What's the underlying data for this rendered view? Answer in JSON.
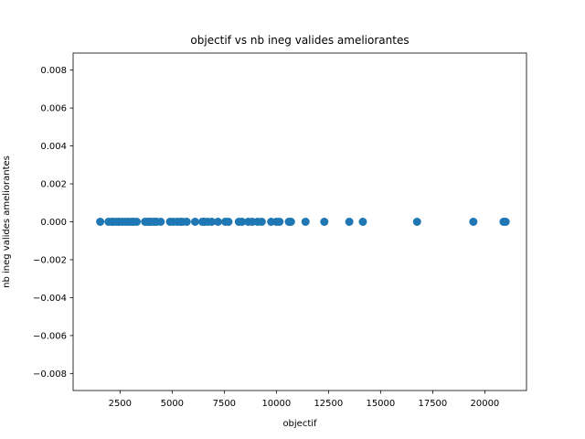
{
  "chart_data": {
    "type": "scatter",
    "title": "objectif   vs   nb ineg valides ameliorantes",
    "xlabel": "objectif",
    "ylabel": "nb ineg valides ameliorantes",
    "xlim": [
      250,
      22000
    ],
    "ylim": [
      -0.0089,
      0.0089
    ],
    "xticks": [
      2500,
      5000,
      7500,
      10000,
      12500,
      15000,
      17500,
      20000
    ],
    "xtick_labels": [
      "2500",
      "5000",
      "7500",
      "10000",
      "12500",
      "15000",
      "17500",
      "20000"
    ],
    "yticks": [
      -0.008,
      -0.006,
      -0.004,
      -0.002,
      0.0,
      0.002,
      0.004,
      0.006,
      0.008
    ],
    "ytick_labels": [
      "−0.008",
      "−0.006",
      "−0.004",
      "−0.002",
      "0.000",
      "0.002",
      "0.004",
      "0.006",
      "0.008"
    ],
    "grid": false,
    "marker_color": "#1f77b4",
    "series": [
      {
        "x": [
          1550,
          1950,
          2100,
          2200,
          2350,
          2450,
          2600,
          2750,
          2900,
          3050,
          3150,
          3300,
          3700,
          3800,
          3900,
          4000,
          4150,
          4250,
          4450,
          4900,
          5050,
          5250,
          5400,
          5500,
          5700,
          6100,
          6450,
          6550,
          6700,
          6900,
          7200,
          7550,
          7700,
          8200,
          8350,
          8650,
          8850,
          9100,
          9300,
          9750,
          10000,
          10150,
          10600,
          10700,
          11400,
          12300,
          13500,
          14150,
          16750,
          19450,
          20900,
          21000
        ],
        "y": [
          0,
          0,
          0,
          0,
          0,
          0,
          0,
          0,
          0,
          0,
          0,
          0,
          0,
          0,
          0,
          0,
          0,
          0,
          0,
          0,
          0,
          0,
          0,
          0,
          0,
          0,
          0,
          0,
          0,
          0,
          0,
          0,
          0,
          0,
          0,
          0,
          0,
          0,
          0,
          0,
          0,
          0,
          0,
          0,
          0,
          0,
          0,
          0,
          0,
          0,
          0,
          0
        ]
      }
    ]
  }
}
